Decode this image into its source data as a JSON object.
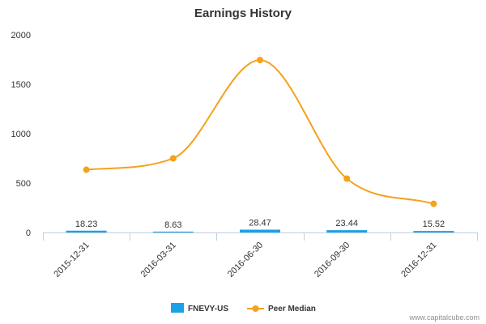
{
  "chart_data": {
    "type": "bar",
    "title": "Earnings History",
    "categories": [
      "2015-12-31",
      "2016-03-31",
      "2016-06-30",
      "2016-09-30",
      "2016-12-31"
    ],
    "ylim": [
      0,
      2000
    ],
    "yticks": [
      0,
      500,
      1000,
      1500,
      2000
    ],
    "grid": false,
    "legend_position": "bottom-center",
    "series": [
      {
        "name": "FNEVY-US",
        "type": "bar",
        "color": "#1aa1e6",
        "values": [
          18.23,
          8.63,
          28.47,
          23.44,
          15.52
        ],
        "labels": [
          "18.23",
          "8.63",
          "28.47",
          "23.44",
          "15.52"
        ]
      },
      {
        "name": "Peer Median",
        "type": "line",
        "smooth": true,
        "color": "#f5a11c",
        "values": [
          635,
          750,
          1745,
          545,
          290
        ]
      }
    ]
  },
  "credit": "www.capitalcube.com"
}
